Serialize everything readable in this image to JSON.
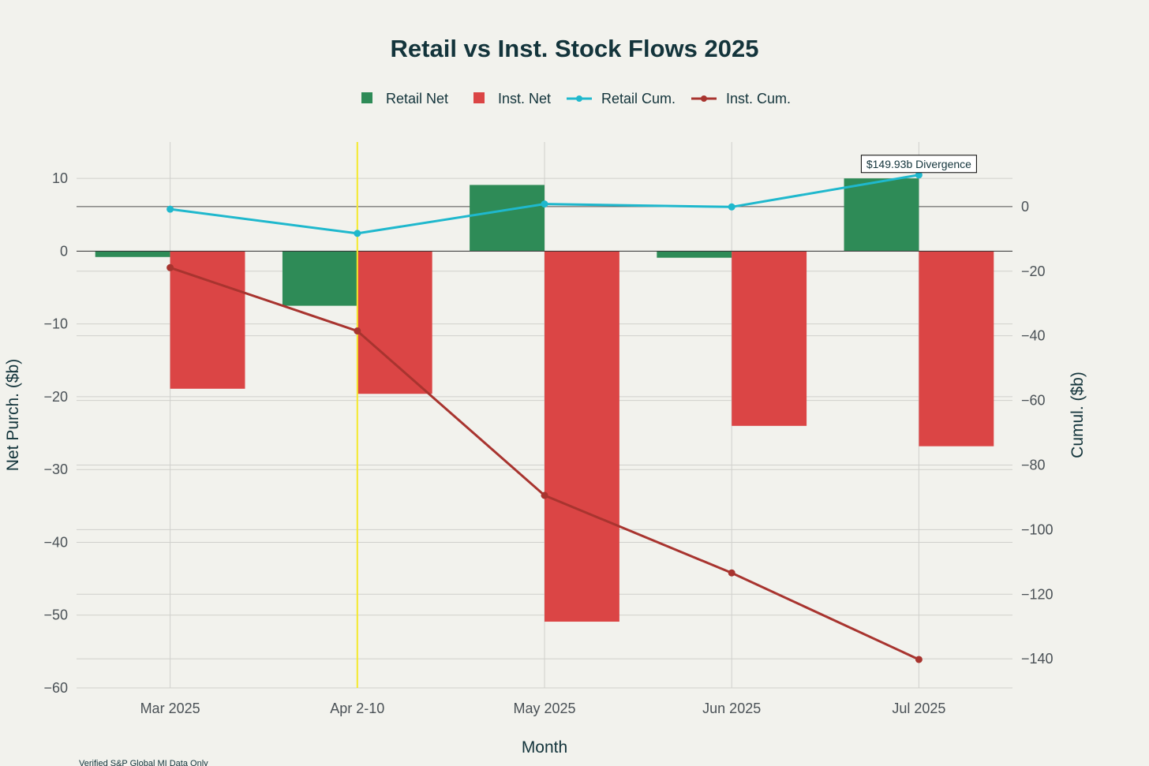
{
  "chart_data": {
    "type": "bar",
    "title": "Retail vs Inst. Stock Flows 2025",
    "xlabel": "Month",
    "ylabel": "Net Purch. ($b)",
    "y2label": "Cumul. ($b)",
    "categories": [
      "Mar 2025",
      "Apr 2-10",
      "May 2025",
      "Jun 2025",
      "Jul 2025"
    ],
    "ylim": [
      -60,
      15
    ],
    "y2lim": [
      -149,
      20
    ],
    "yticks": [
      10,
      0,
      -10,
      -20,
      -30,
      -40,
      -50,
      -60
    ],
    "y2ticks": [
      0,
      -20,
      -40,
      -60,
      -80,
      -100,
      -120,
      -140
    ],
    "grid": true,
    "legend_position": "top-center",
    "series": [
      {
        "name": "Retail Net",
        "kind": "bar",
        "axis": "y",
        "color": "#2e8b57",
        "values": [
          -0.8,
          -7.5,
          9.1,
          -0.9,
          10.0
        ]
      },
      {
        "name": "Inst. Net",
        "kind": "bar",
        "axis": "y",
        "color": "#db4545",
        "values": [
          -18.9,
          -19.6,
          -50.9,
          -24.0,
          -26.8
        ]
      },
      {
        "name": "Retail Cum.",
        "kind": "line",
        "axis": "y2",
        "color": "#1fb8cd",
        "values": [
          -0.8,
          -8.3,
          0.8,
          -0.1,
          9.8
        ]
      },
      {
        "name": "Inst. Cum.",
        "kind": "line",
        "axis": "y2",
        "color": "#a8342f",
        "values": [
          -18.9,
          -38.5,
          -89.4,
          -113.4,
          -140.2
        ]
      }
    ],
    "annotation": {
      "text": "$149.93b Divergence",
      "category": "Jul 2025"
    },
    "highlight_category": "Apr 2-10",
    "highlight_color": "#f5e92a",
    "footnote": "Verified S&P Global MI Data Only"
  }
}
